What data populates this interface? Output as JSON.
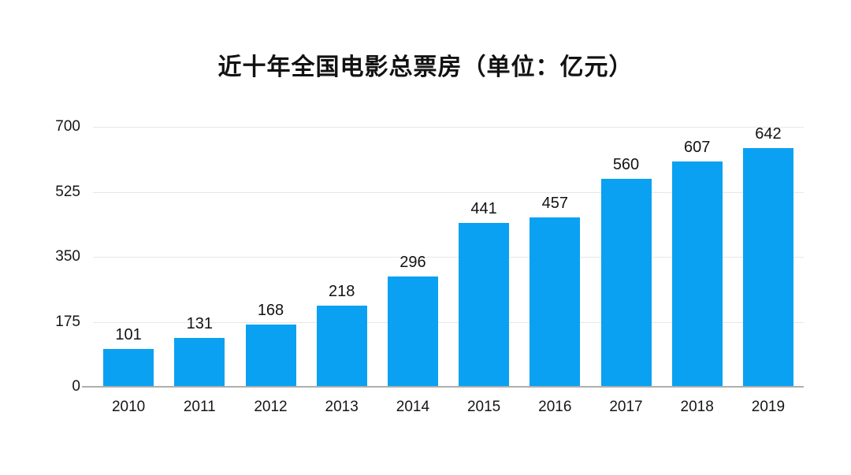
{
  "chart_data": {
    "type": "bar",
    "title": "近十年全国电影总票房（单位：亿元）",
    "unit_label": "亿元",
    "categories": [
      "2010",
      "2011",
      "2012",
      "2013",
      "2014",
      "2015",
      "2016",
      "2017",
      "2018",
      "2019"
    ],
    "values": [
      101,
      131,
      168,
      218,
      296,
      441,
      457,
      560,
      607,
      642
    ],
    "xlabel": "",
    "ylabel": "",
    "ylim": [
      0,
      700
    ],
    "yticks": [
      0,
      175,
      350,
      525,
      700
    ],
    "grid": "horizontal",
    "legend_position": "none",
    "colors": {
      "bar": "#0aa1f2",
      "gridline": "#e7e7e7",
      "axis_line": "#aeaeae",
      "text": "#121212",
      "background": "#ffffff"
    }
  }
}
